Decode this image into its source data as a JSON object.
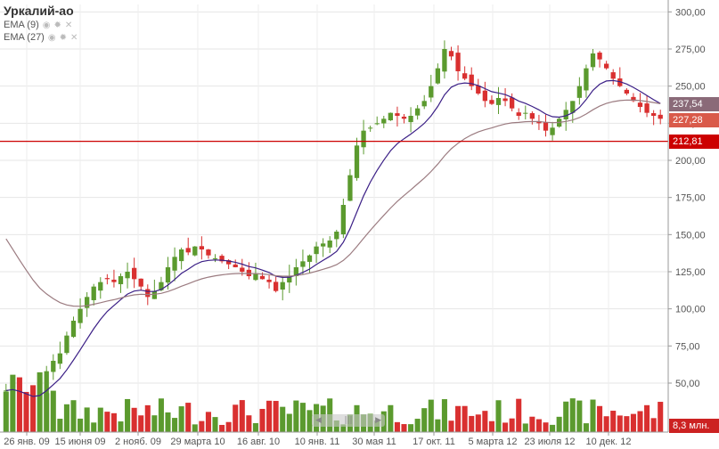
{
  "legend": {
    "title": "Уркалий-ао",
    "indicators": [
      {
        "label": "EMA (9)"
      },
      {
        "label": "EMA (27)"
      }
    ]
  },
  "price_tags": {
    "ema27": "237,54",
    "ema9": "227,28",
    "level": "212,81",
    "volume": "8,3 млн."
  },
  "colors": {
    "up": "#5b9a2e",
    "down": "#d93030",
    "ema9": "#3b1f86",
    "ema27": "#9b7b80",
    "level": "#cc0000",
    "ema27_tag": "#8a6a78",
    "ema9_tag": "#d95a4a"
  },
  "chart_data": {
    "type": "candlestick",
    "y_axis": {
      "min": 35,
      "max": 305,
      "ticks": [
        "300,00",
        "275,00",
        "250,00",
        "225,00",
        "200,00",
        "175,00",
        "150,00",
        "125,00",
        "100,00",
        "75,00",
        "50,00"
      ],
      "tick_values": [
        300,
        275,
        250,
        225,
        200,
        175,
        150,
        125,
        100,
        75,
        50
      ]
    },
    "x_labels": [
      "26 янв. 09",
      "15 июня 09",
      "2 нояб. 09",
      "29 марта 10",
      "16 авг. 10",
      "10 янв. 11",
      "30 мая 11",
      "17 окт. 11",
      "5 марта 12",
      "23 июля 12",
      "10 дек. 12"
    ],
    "horizontal_level": 212.81,
    "close_series": [
      45,
      48,
      40,
      36,
      34,
      44,
      58,
      65,
      70,
      82,
      92,
      100,
      108,
      115,
      118,
      120,
      118,
      122,
      125,
      120,
      115,
      108,
      112,
      118,
      128,
      135,
      140,
      138,
      142,
      140,
      136,
      134,
      132,
      130,
      128,
      125,
      122,
      124,
      120,
      118,
      112,
      118,
      122,
      128,
      132,
      136,
      142,
      144,
      146,
      152,
      170,
      190,
      210,
      220,
      222,
      225,
      228,
      232,
      230,
      228,
      230,
      235,
      240,
      250,
      262,
      275,
      270,
      260,
      255,
      250,
      245,
      240,
      238,
      242,
      240,
      235,
      230,
      232,
      228,
      225,
      220,
      222,
      228,
      234,
      240,
      250,
      262,
      272,
      268,
      262,
      255,
      250,
      245,
      240,
      236,
      232,
      230,
      228
    ],
    "ema9_end": 227.28,
    "ema27_end": 237.54,
    "volume_end": "8,3 млн."
  }
}
